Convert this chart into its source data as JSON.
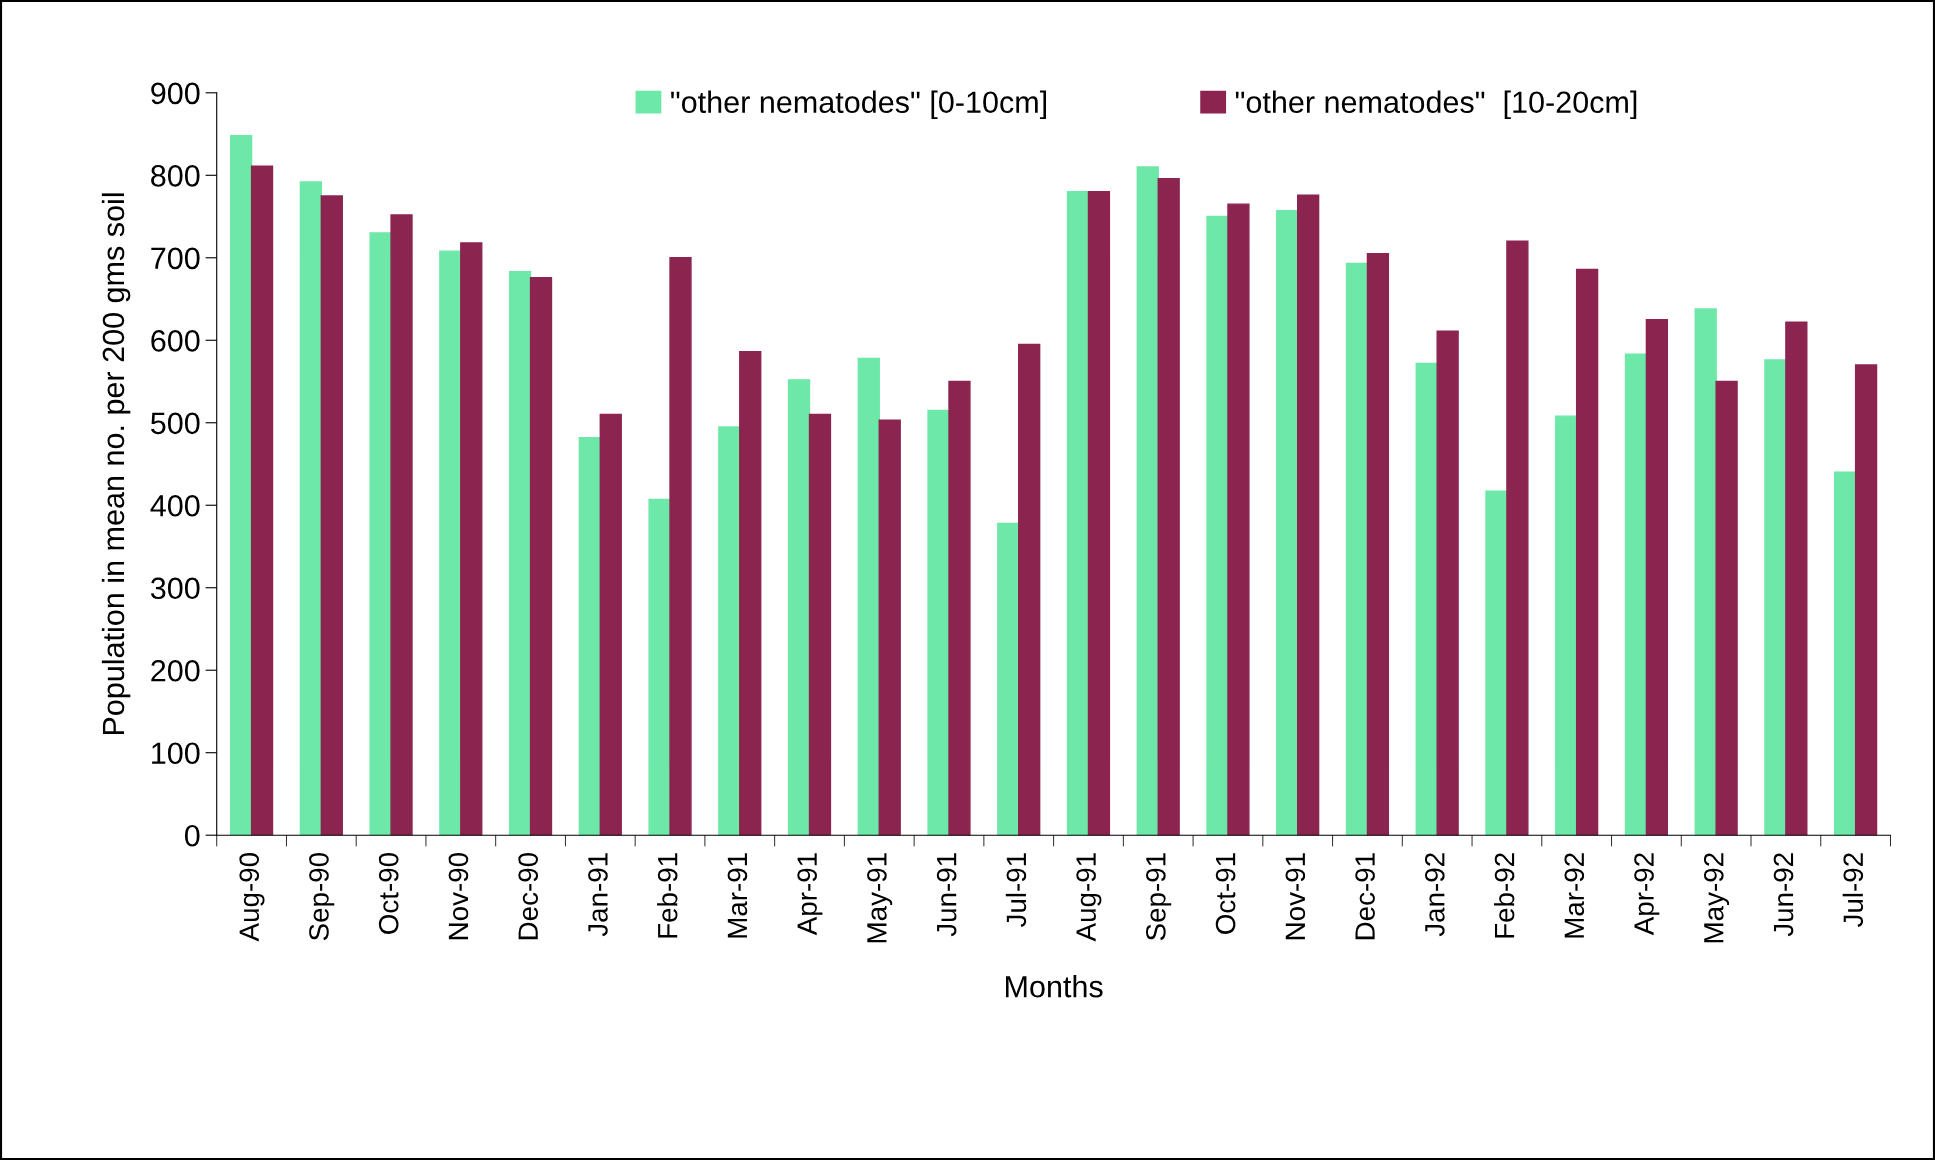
{
  "chart_data": {
    "type": "bar",
    "xlabel": "Months",
    "ylabel": "Population in mean no. per 200 gms soil",
    "categories": [
      "Aug-90",
      "Sep-90",
      "Oct-90",
      "Nov-90",
      "Dec-90",
      "Jan-91",
      "Feb-91",
      "Mar-91",
      "Apr-91",
      "May-91",
      "Jun-91",
      "Jul-91",
      "Aug-91",
      "Sep-91",
      "Oct-91",
      "Nov-91",
      "Dec-91",
      "Jan-92",
      "Feb-92",
      "Mar-92",
      "Apr-92",
      "May-92",
      "Jun-92",
      "Jul-92"
    ],
    "series": [
      {
        "name": "\"other nematodes\" [0-10cm]",
        "color": "#6ee8a8",
        "values": [
          848,
          792,
          730,
          708,
          683,
          482,
          407,
          495,
          552,
          578,
          515,
          378,
          780,
          810,
          750,
          757,
          693,
          572,
          417,
          508,
          583,
          638,
          576,
          440
        ]
      },
      {
        "name": "\"other nematodes\"  [10-20cm]",
        "color": "#8b2550",
        "values": [
          811,
          775,
          752,
          718,
          676,
          510,
          700,
          586,
          510,
          503,
          550,
          595,
          780,
          796,
          765,
          776,
          705,
          611,
          720,
          686,
          625,
          550,
          622,
          570
        ]
      }
    ],
    "ylim": [
      0,
      900
    ],
    "yticks": [
      0,
      100,
      200,
      300,
      400,
      500,
      600,
      700,
      800,
      900
    ],
    "grid": false,
    "legend": "top"
  }
}
